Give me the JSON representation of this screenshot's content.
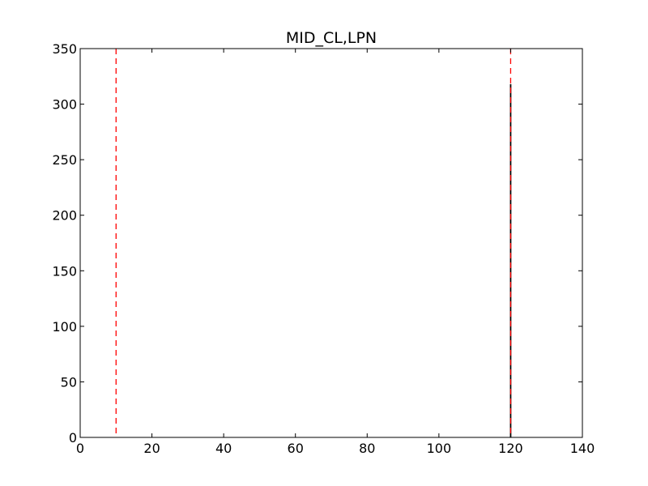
{
  "chart_data": {
    "type": "bar",
    "title": "MID_CL,LPN",
    "xlabel": "",
    "ylabel": "",
    "xlim": [
      0,
      140
    ],
    "ylim": [
      0,
      350
    ],
    "xticks": [
      0,
      20,
      40,
      60,
      80,
      100,
      120,
      140
    ],
    "yticks": [
      0,
      50,
      100,
      150,
      200,
      250,
      300,
      350
    ],
    "grid": false,
    "legend": "none",
    "bars": [
      {
        "x_start": 119.8,
        "x_end": 120.2,
        "value": 318
      }
    ],
    "reference_lines": [
      {
        "orientation": "vertical",
        "x": 10,
        "style": "dashed",
        "color": "#ff0000"
      },
      {
        "orientation": "vertical",
        "x": 120,
        "style": "dashed",
        "color": "#ff0000"
      }
    ],
    "bar_color": "#000000"
  }
}
